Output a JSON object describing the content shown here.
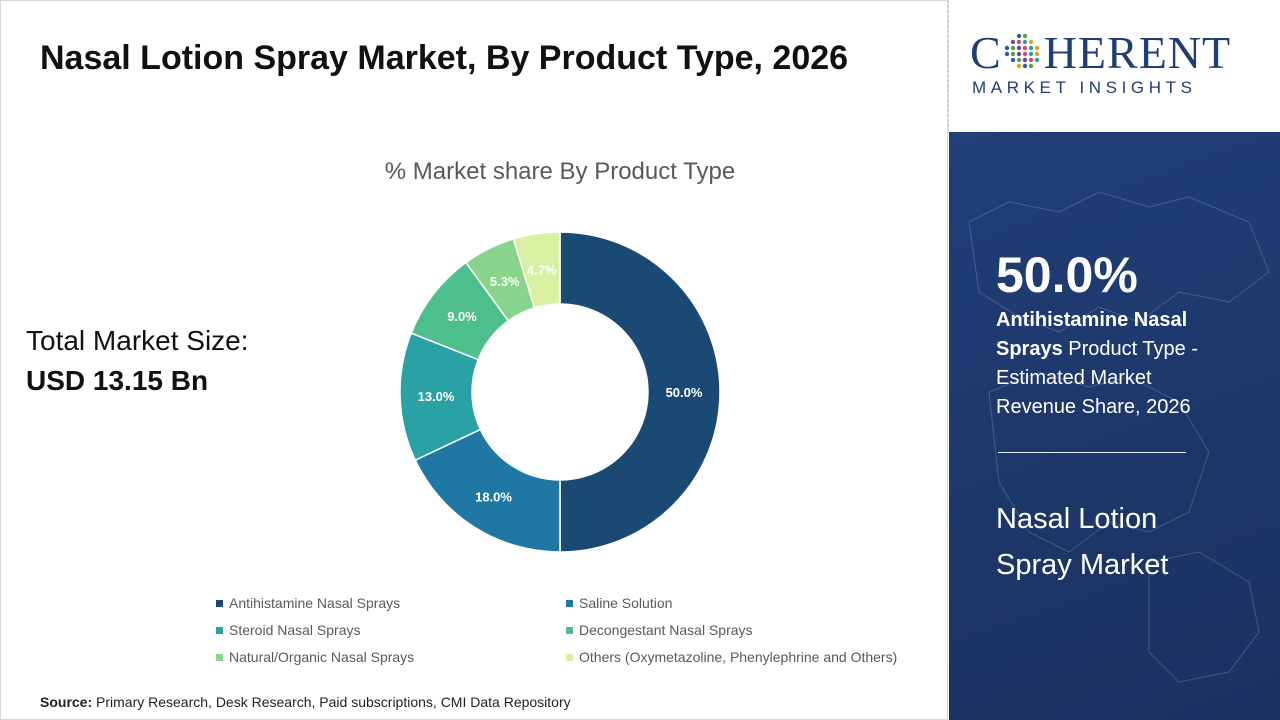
{
  "page": {
    "title": "Nasal Lotion Spray Market, By Product Type, 2026",
    "total_market_label": "Total Market Size:",
    "total_market_value": "USD 13.15 Bn",
    "source_label": "Source:",
    "source_text": "Primary Research, Desk Research, Paid subscriptions, CMI Data Repository"
  },
  "brand": {
    "name_left": "C",
    "name_right": "HERENT",
    "tagline": "MARKET INSIGHTS",
    "color": "#1f3e73"
  },
  "side_panel": {
    "kpi_value": "50.0%",
    "kpi_bold": "Antihistamine Nasal Sprays",
    "kpi_rest": " Product Type - Estimated Market Revenue Share, 2026",
    "market_name": "Nasal Lotion Spray Market"
  },
  "chart_data": {
    "type": "pie",
    "title": "% Market share By Product Type",
    "donut": true,
    "legend_position": "bottom",
    "categories": [
      "Antihistamine Nasal Sprays",
      "Saline Solution",
      "Steroid Nasal Sprays",
      "Decongestant Nasal Sprays",
      "Natural/Organic Nasal Sprays",
      "Others (Oxymetazoline, Phenylephrine and Others)"
    ],
    "values": [
      50.0,
      18.0,
      13.0,
      9.0,
      5.3,
      4.7
    ],
    "labels": [
      "50.0%",
      "18.0%",
      "13.0%",
      "9.0%",
      "5.3%",
      "4.7%"
    ],
    "colors": [
      "#1a4a74",
      "#1f77a3",
      "#2aa1a4",
      "#4cbf8c",
      "#88d48c",
      "#d9f0a3"
    ],
    "label_colors": [
      "#ffffff",
      "#ffffff",
      "#ffffff",
      "#ffffff",
      "#ffffff",
      "#ffffff"
    ]
  }
}
